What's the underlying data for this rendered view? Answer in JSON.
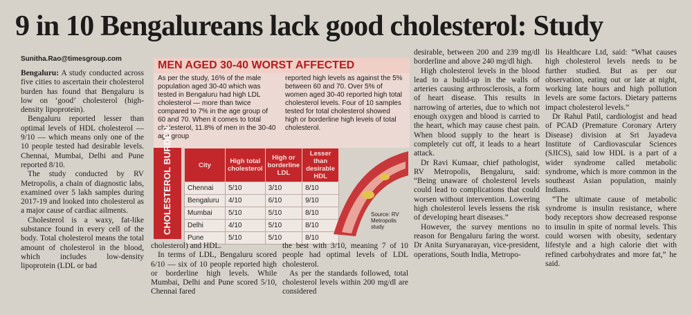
{
  "headline": "9 in 10 Bengalureans lack good cholesterol: Study",
  "byline": "Sunitha.Rao@timesgroup.com",
  "column1": {
    "lead": "Bengaluru:",
    "paragraphs": [
      "A study conducted across five cities to ascertain their cholesterol burden has found that Bengaluru is low on ‘good’ cholesterol (high-density lipoprotein).",
      "Bengaluru reported lesser than optimal levels of HDL cholesterol — 9/10 — which means only one of the 10 people tested had desirable levels. Chennai, Mumbai, Delhi and Pune reported 8/10.",
      "The study conducted by RV Metropolis, a chain of diagnostic labs, examined over 5 lakh samples during 2017-19 and looked into cholesterol as a major cause of cardiac ailments.",
      "Cholesterol is a waxy, fat-like substance found in every cell of the body. Total cholesterol means the total amount of cholesterol in the blood, which includes low-density lipoprotein (LDL or bad"
    ]
  },
  "box": {
    "title": "MEN AGED 30-40 WORST AFFECTED",
    "text_left": "As per the study, 16% of the male population aged 30-40 which was tested in Bengaluru had high LDL cholesterol — more than twice compared to 7% in the age group of 60 and 70. When it comes to total cholesterol, 11.8% of men in the 30-40 age group",
    "text_right": "reported high levels as against the 5% between 60 and 70. Over 5% of women aged 30-40 reported high total cholesterol levels. Four of 10 samples tested for total cholesterol showed high or borderline high levels of total cholesterol.",
    "table": {
      "side_label": "CHOLESTEROL BURDEN",
      "headers": [
        "City",
        "High total cholesterol",
        "High or borderline LDL",
        "Lesser than desirable HDL"
      ],
      "rows": [
        [
          "Chennai",
          "5/10",
          "3/10",
          "8/10"
        ],
        [
          "Bengaluru",
          "4/10",
          "6/10",
          "9/10"
        ],
        [
          "Mumbai",
          "5/10",
          "5/10",
          "8/10"
        ],
        [
          "Delhi",
          "4/10",
          "5/10",
          "8/10"
        ],
        [
          "Pune",
          "5/10",
          "5/10",
          "8/10"
        ]
      ]
    },
    "source": "Source: RV Metropolis study"
  },
  "column2": [
    "cholesterol) and HDL.",
    "In terms of LDL, Bengaluru scored 6/10 — six of 10 people reported high or borderline high levels. While Mumbai, Delhi and Pune scored 5/10, Chennai fared"
  ],
  "column3": [
    "the best with 3/10, meaning 7 of 10 people had optimal levels of LDL cholesterol.",
    "As per the standards followed, total cholesterol levels within 200 mg/dl are considered"
  ],
  "column4": [
    "desirable, between 200 and 239 mg/dl borderline and above 240 mg/dl high.",
    "High cholesterol levels in the blood lead to a build-up in the walls of arteries causing arthrosclerosis, a form of heart disease. This results in narrowing of arteries, due to which not enough oxygen and blood is carried to the heart, which may cause chest pain. When blood supply to the heart is completely cut off, it leads to a heart attack.",
    "Dr Ravi Kumaar, chief pathologist, RV Metropolis, Bengaluru, said: “Being unaware of cholesterol levels could lead to complications that could worsen without intervention. Lowering high cholesterol levels lessens the risk of developing heart diseases.”",
    "However, the survey mentions no reason for Bengaluru faring the worst. Dr Anita Suryanarayan, vice-president, operations, South India, Metropo-"
  ],
  "column5": [
    "lis Healthcare Ltd, said: “What causes high cholesterol levels needs to be further studied. But as per our observation, eating out or late at night, working late hours and high pollution levels are some factors. Dietary patterns impact cholesterol levels.”",
    "Dr Rahul Patil, cardiologist and head of PCAD (Premature Coronary Artery Disease) division at Sri Jayadeva Institute of Cardiovascular Sciences (SJICS), said low HDL is a part of a wider syndrome called metabolic syndrome, which is more common in the southeast Asian population, mainly Indians.",
    "“The ultimate cause of metabolic syndrome is insulin resistance, where body receptors show decreased response to insulin in spite of normal levels. This could worsen with obesity, sedentary lifestyle and a high calorie diet with refined carbohydrates and more fat,” he said."
  ]
}
